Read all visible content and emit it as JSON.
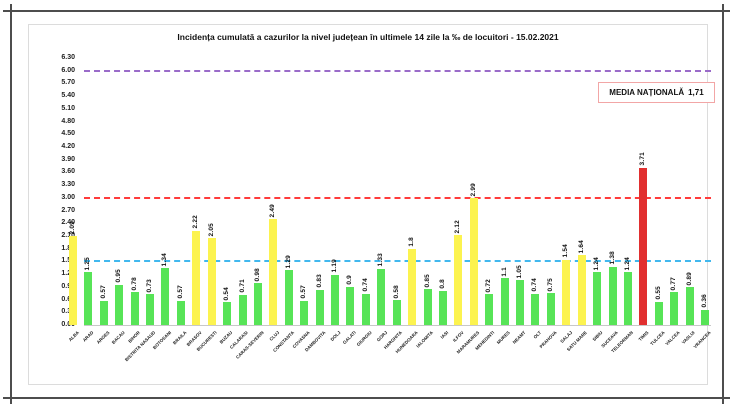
{
  "chart_data": {
    "type": "bar",
    "title": "Incidența cumulată a cazurilor la nivel județean în ultimele 14 zile la ‰ de locuitori - 15.02.2021",
    "categories": [
      "ALBA",
      "ARAD",
      "ARGES",
      "BACAU",
      "BIHOR",
      "BISTRITA NASAUD",
      "BOTOSANI",
      "BRAILA",
      "BRASOV",
      "BUCURESTI",
      "BUZAU",
      "CALARASI",
      "CARAS-SEVERIN",
      "CLUJ",
      "CONSTANTA",
      "COVASNA",
      "DAMBOVITA",
      "DOLJ",
      "GALATI",
      "GIURGIU",
      "GORJ",
      "HARGHITA",
      "HUNEDOARA",
      "IALOMITA",
      "IASI",
      "ILFOV",
      "MARAMURES",
      "MEHEDINTI",
      "MURES",
      "NEAMT",
      "OLT",
      "PRAHOVA",
      "SALAJ",
      "SATU MARE",
      "SIBIU",
      "SUCEAVA",
      "TELEORMAN",
      "TIMIS",
      "TULCEA",
      "VALCEA",
      "VASLUI",
      "VRANCEA"
    ],
    "values": [
      2.09,
      1.25,
      0.57,
      0.95,
      0.78,
      0.73,
      1.34,
      0.57,
      2.22,
      2.05,
      0.54,
      0.71,
      0.98,
      2.49,
      1.29,
      0.57,
      0.83,
      1.19,
      0.9,
      0.74,
      1.33,
      0.58,
      1.8,
      0.85,
      0.8,
      2.12,
      2.99,
      0.72,
      1.1,
      1.05,
      0.74,
      0.75,
      1.54,
      1.64,
      1.24,
      1.38,
      1.24,
      3.71,
      0.55,
      0.77,
      0.89,
      0.36
    ],
    "value_labels": [
      "2.09",
      "1.25",
      "0.57",
      "0.95",
      "0.78",
      "0.73",
      "1.34",
      "0.57",
      "2.22",
      "2.05",
      "0.54",
      "0.71",
      "0.98",
      "2.49",
      "1.29",
      "0.57",
      "0.83",
      "1.19",
      "0.9",
      "0.74",
      "1.33",
      "0.58",
      "1.8",
      "0.85",
      "0.8",
      "2.12",
      "2.99",
      "0.72",
      "1.1",
      "1.05",
      "0.74",
      "0.75",
      "1.54",
      "1.64",
      "1.24",
      "1.38",
      "1.24",
      "3.71",
      "0.55",
      "0.77",
      "0.89",
      "0.36"
    ],
    "xlabel": "",
    "ylabel": "",
    "ylim": [
      0,
      6.3
    ],
    "yticks": [
      "6.30",
      "6.00",
      "5.70",
      "5.40",
      "5.10",
      "4.80",
      "4.50",
      "4.20",
      "3.90",
      "3.60",
      "3.30",
      "3.00",
      "2.70",
      "2.40",
      "2.10",
      "1.80",
      "1.50",
      "1.20",
      "0.90",
      "0.60",
      "0.30",
      "0.00"
    ],
    "grid": false,
    "legend": "none",
    "reference_lines": [
      {
        "value": 6.0,
        "color": "#9a6bc9",
        "style": "dashed"
      },
      {
        "value": 3.0,
        "color": "#ff3b3b",
        "style": "dashed"
      },
      {
        "value": 1.5,
        "color": "#41b8ee",
        "style": "dashed"
      }
    ],
    "colors": {
      "green": "#57e457",
      "yellow": "#fcf34f",
      "red": "#e12f2f",
      "yellow_threshold": 1.5,
      "red_threshold": 3.0
    },
    "annotation": {
      "label": "MEDIA NAȚIONALĂ",
      "value": "1,71",
      "border_color": "#f2a6a6"
    }
  }
}
